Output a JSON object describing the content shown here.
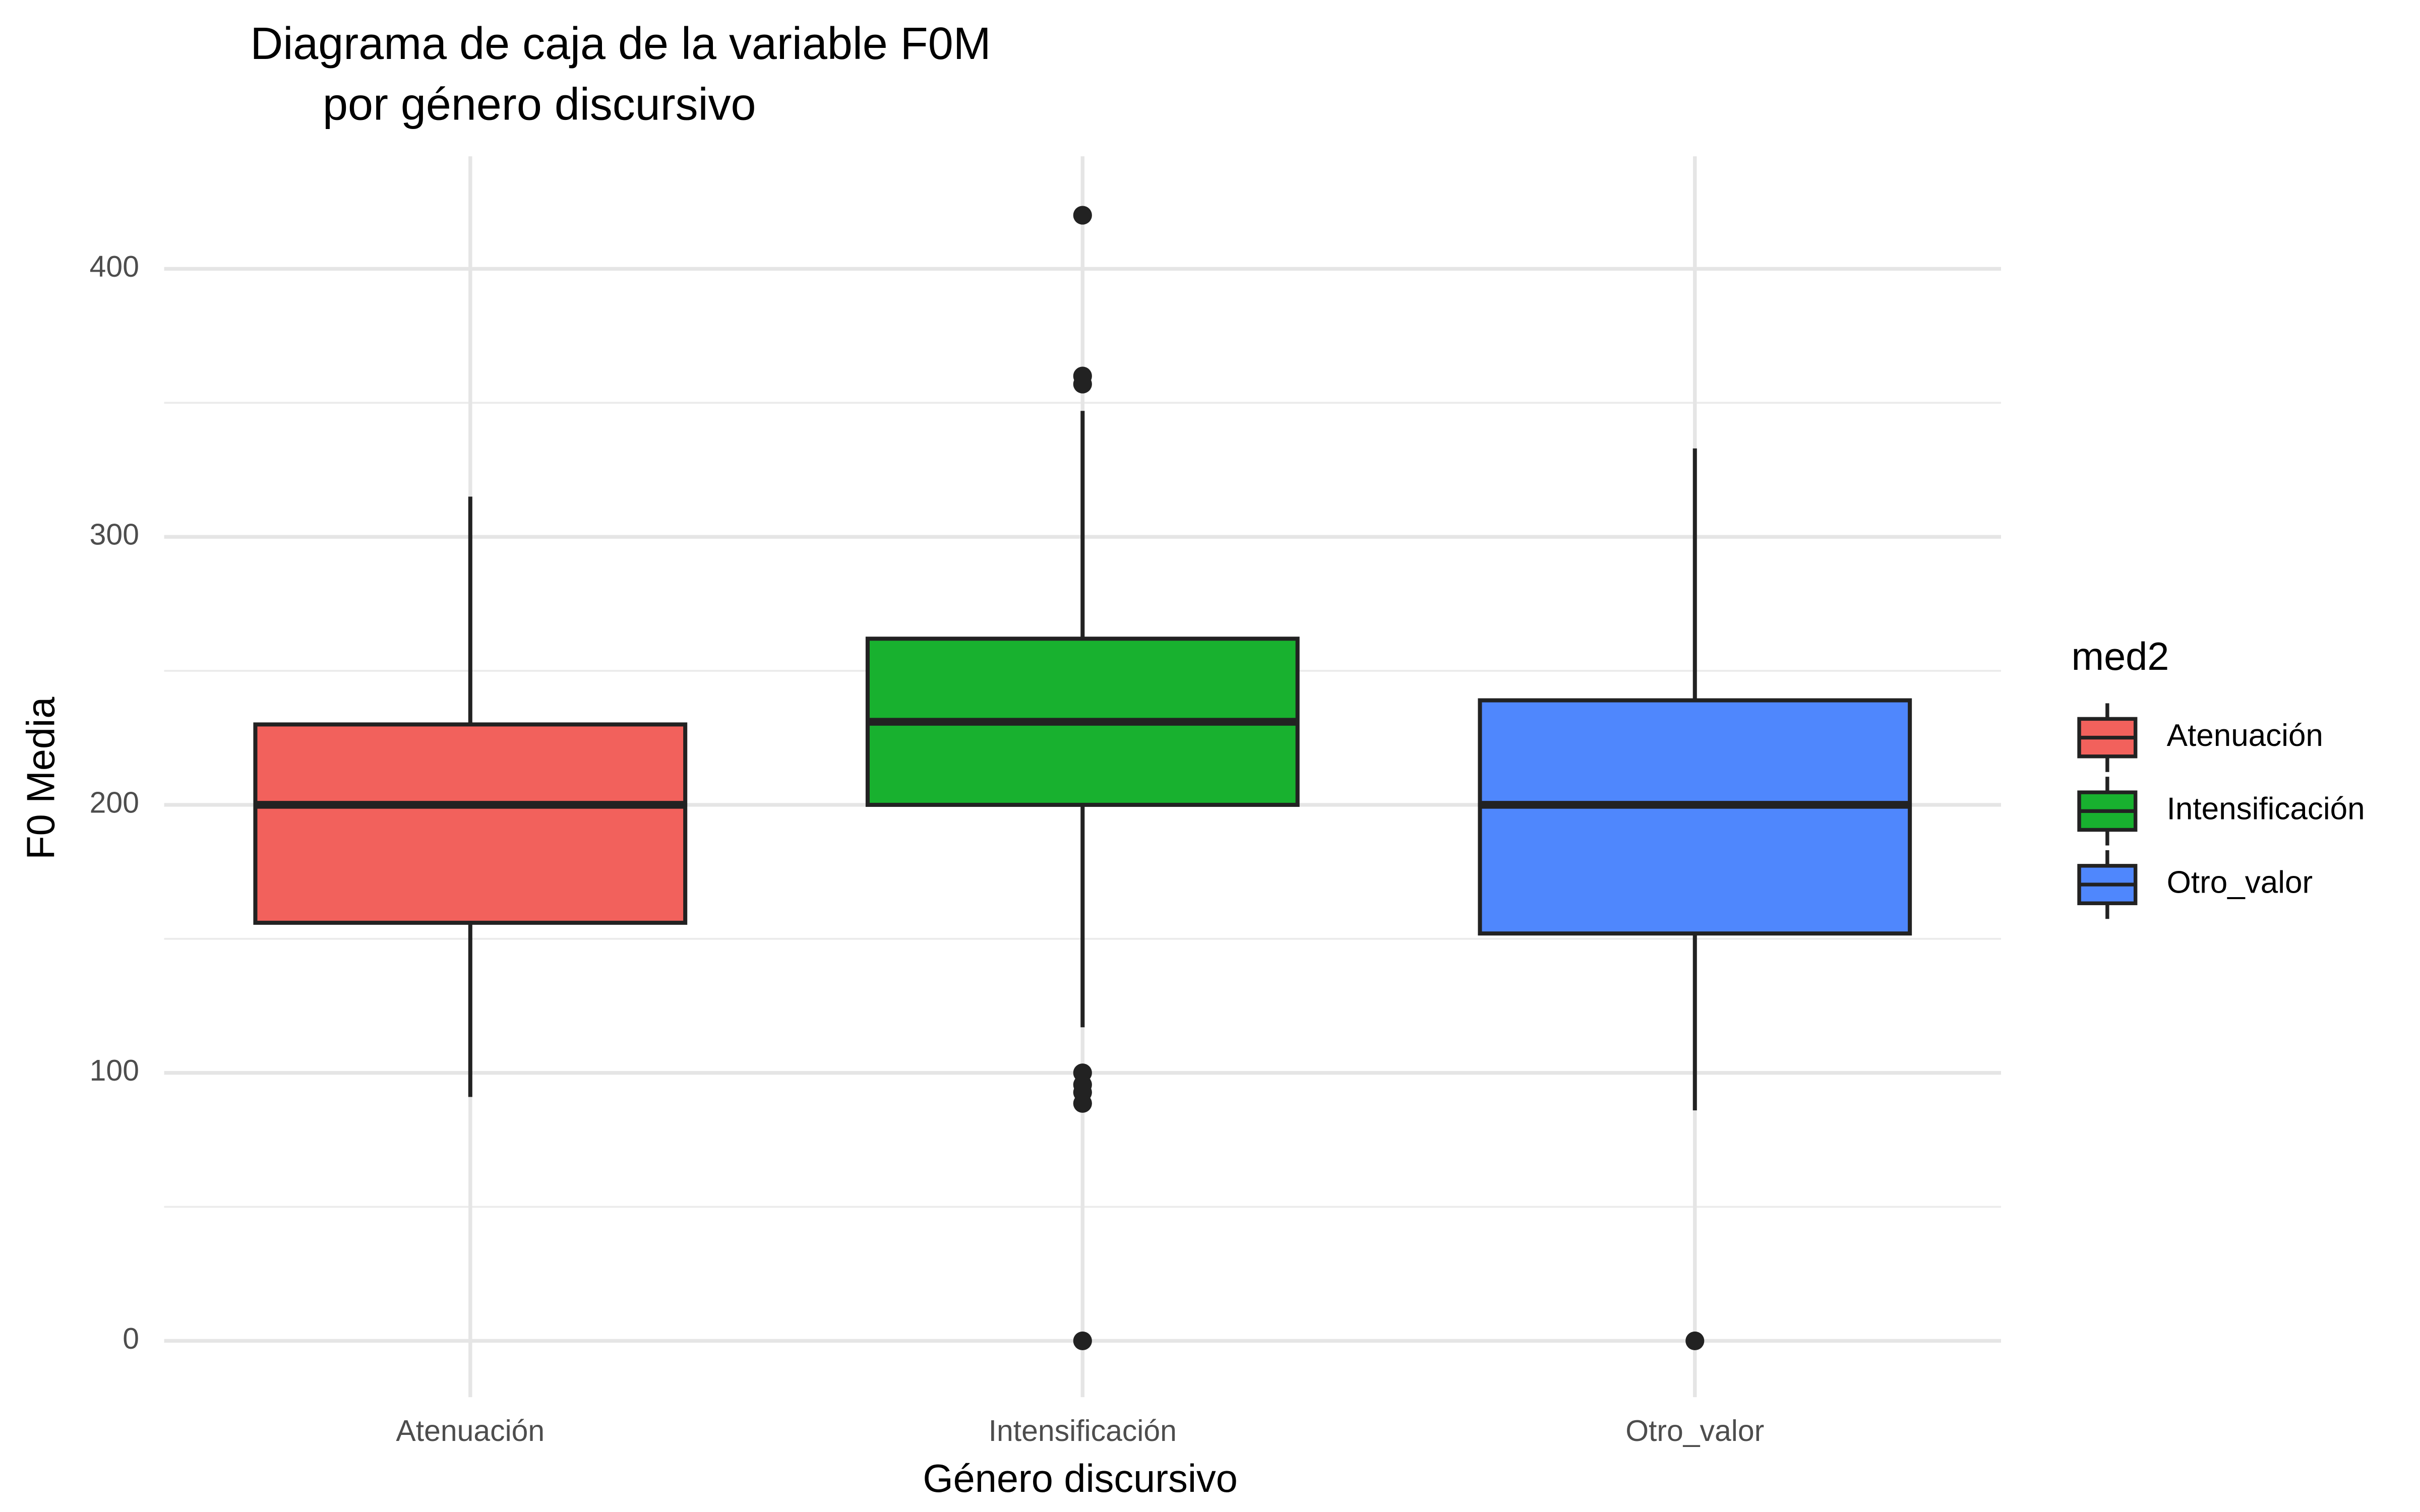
{
  "chart_data": {
    "type": "box",
    "title": [
      "Diagrama de caja de la variable F0M",
      "por género discursivo"
    ],
    "x_label": "Género discursivo",
    "y_label": "F0 Media",
    "legend_title": "med2",
    "legend_position": "right",
    "grid": true,
    "categories": [
      "Atenuación",
      "Intensificación",
      "Otro_valor"
    ],
    "colors": [
      "#f2615c",
      "#18b12f",
      "#4f87fd"
    ],
    "whislo": [
      91,
      117,
      86
    ],
    "q1": [
      156,
      200,
      152
    ],
    "median": [
      200,
      231,
      200
    ],
    "q3": [
      230,
      262,
      239
    ],
    "whishi": [
      315,
      347,
      333
    ],
    "outliers": [
      [],
      [
        420,
        360,
        357,
        100,
        95.6,
        92.7,
        88.6,
        0
      ],
      [
        0
      ]
    ],
    "ylim": [
      -21,
      442
    ],
    "yticks": [
      0,
      100,
      200,
      300,
      400
    ],
    "yminor": [
      50,
      150,
      250,
      350
    ]
  }
}
